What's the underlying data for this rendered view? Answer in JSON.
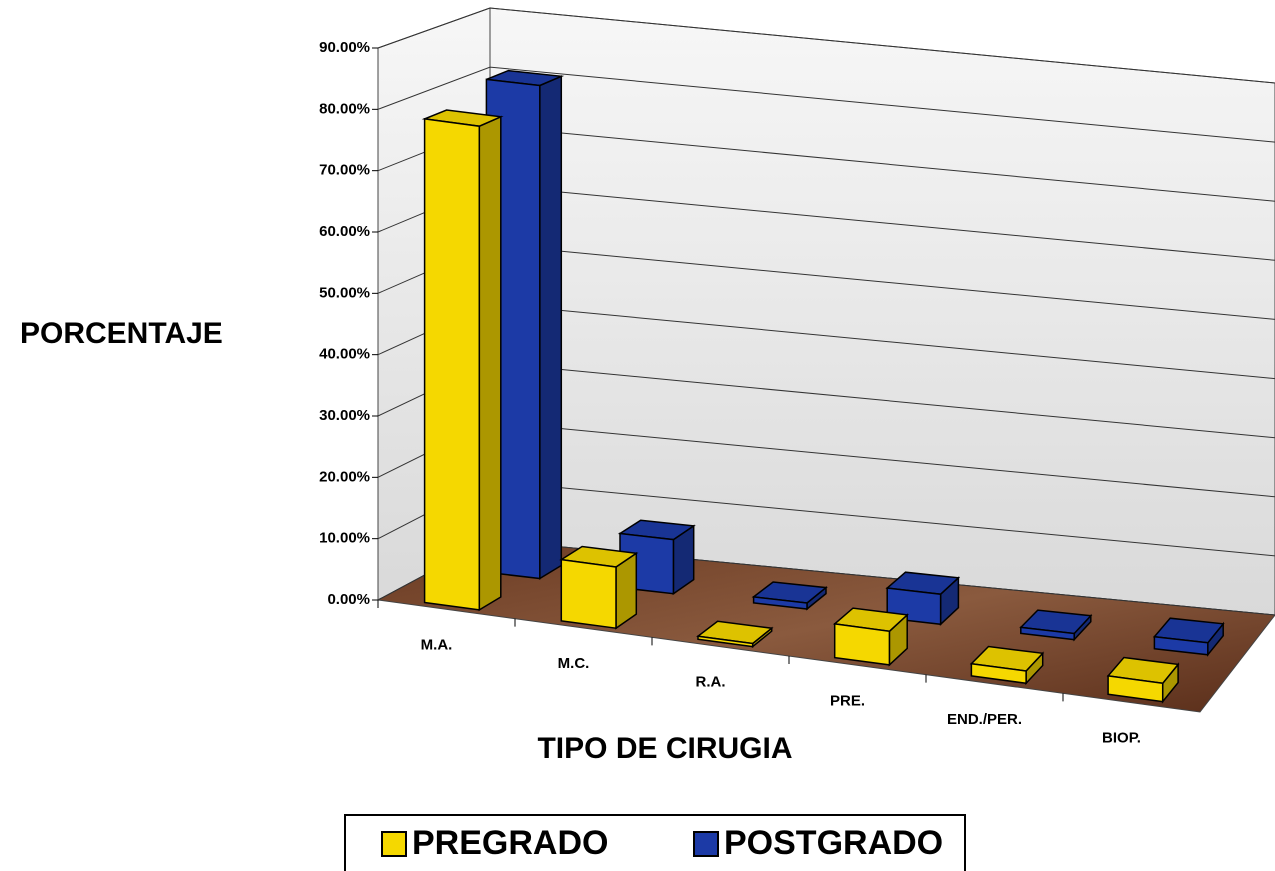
{
  "chart_data": {
    "type": "bar3d",
    "y_axis_label": "PORCENTAJE",
    "x_axis_label": "TIPO DE CIRUGIA",
    "categories": [
      "M.A.",
      "M.C.",
      "R.A.",
      "PRE.",
      "END./PER.",
      "BIOP."
    ],
    "series": [
      {
        "name": "PREGRADO",
        "color": "#f5d800",
        "values": [
          79,
          10,
          0.5,
          5.5,
          2,
          3
        ]
      },
      {
        "name": "POSTGRADO",
        "color": "#1c3aa6",
        "values": [
          82,
          9,
          1,
          5,
          1,
          2
        ]
      }
    ],
    "ylim": [
      0,
      90
    ],
    "yticks": [
      {
        "value": 0,
        "label": "0.00%"
      },
      {
        "value": 10,
        "label": "10.00%"
      },
      {
        "value": 20,
        "label": "20.00%"
      },
      {
        "value": 30,
        "label": "30.00%"
      },
      {
        "value": 40,
        "label": "40.00%"
      },
      {
        "value": 50,
        "label": "50.00%"
      },
      {
        "value": 60,
        "label": "60.00%"
      },
      {
        "value": 70,
        "label": "70.00%"
      },
      {
        "value": 80,
        "label": "80.00%"
      },
      {
        "value": 90,
        "label": "90.00%"
      }
    ],
    "grid": true,
    "legend": "bottom"
  }
}
